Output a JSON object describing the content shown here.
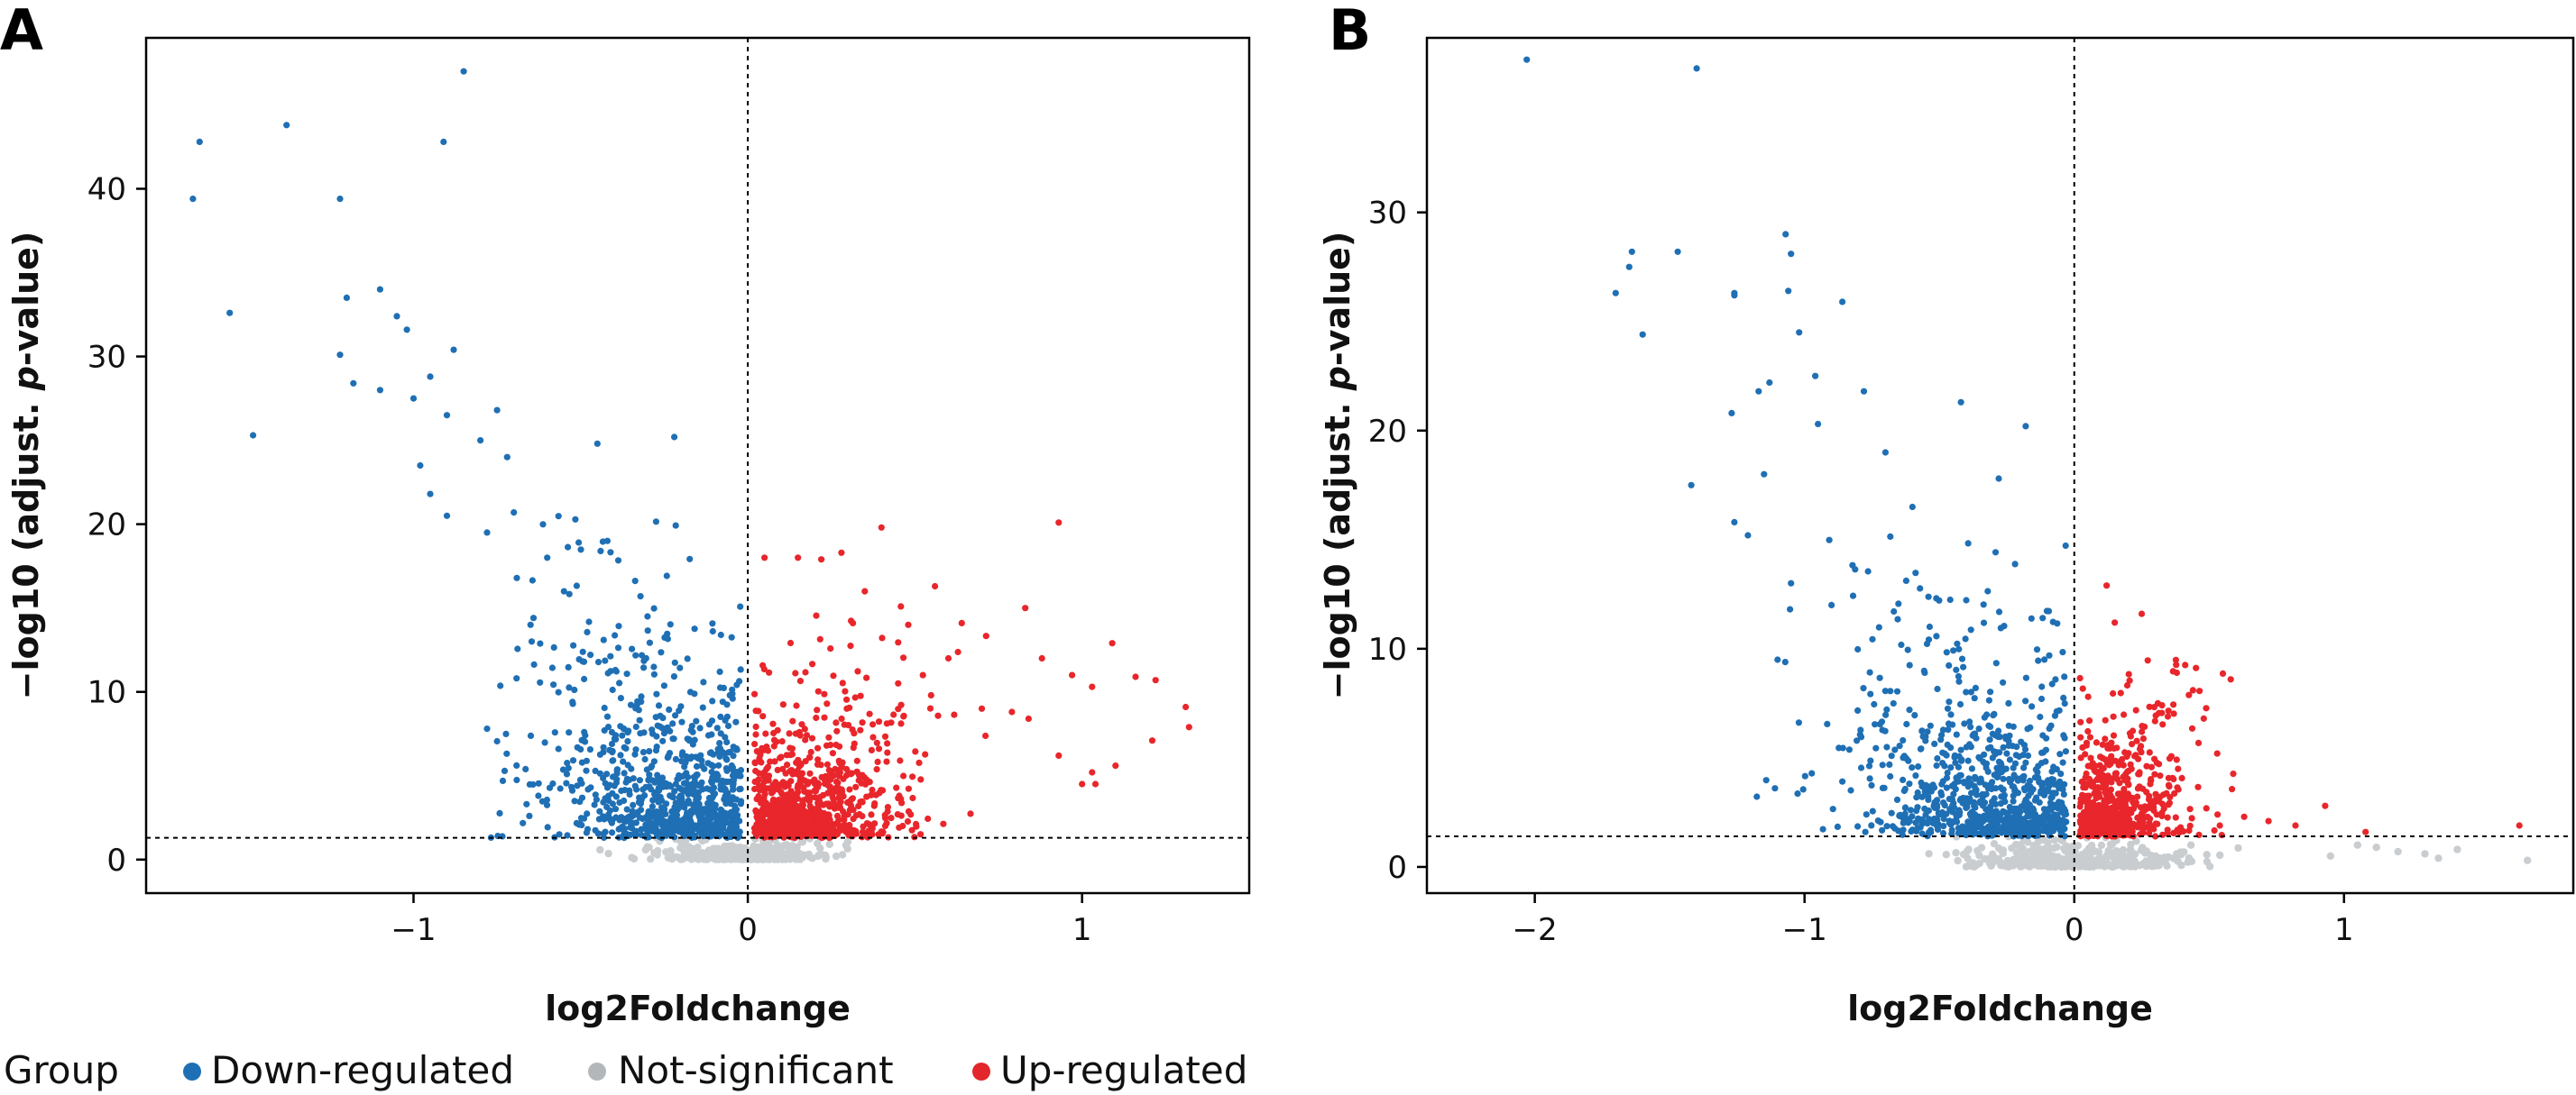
{
  "chart_data": [
    {
      "panel": "A",
      "type": "scatter",
      "xlabel": "log2Foldchange",
      "ylabel_parts": [
        "−log10 (adjust. ",
        "p",
        "-value)"
      ],
      "xlim": [
        -1.8,
        1.5
      ],
      "ylim": [
        -2,
        49
      ],
      "xticks": [
        -1,
        0,
        1
      ],
      "xtick_labels": [
        "−1",
        "0",
        "1"
      ],
      "yticks": [
        0,
        10,
        20,
        30,
        40
      ],
      "ytick_labels": [
        "0",
        "10",
        "20",
        "30",
        "40"
      ],
      "vline_x": 0,
      "hline_y": 1.3,
      "series": [
        {
          "name": "Down-regulated",
          "seed": 11,
          "points": [
            [
              -0.85,
              47
            ],
            [
              -1.38,
              43.8
            ],
            [
              -1.64,
              42.8
            ],
            [
              -0.91,
              42.8
            ],
            [
              -1.66,
              39.4
            ],
            [
              -1.22,
              39.4
            ],
            [
              -1.1,
              34
            ],
            [
              -1.2,
              33.5
            ],
            [
              -1.55,
              32.6
            ],
            [
              -1.05,
              32.4
            ],
            [
              -1.02,
              31.6
            ],
            [
              -0.88,
              30.4
            ],
            [
              -1.22,
              30.1
            ],
            [
              -0.95,
              28.8
            ],
            [
              -1.18,
              28.4
            ],
            [
              -1.1,
              28
            ],
            [
              -1.0,
              27.5
            ],
            [
              -0.75,
              26.8
            ],
            [
              -0.9,
              26.5
            ],
            [
              -1.48,
              25.3
            ],
            [
              -0.22,
              25.2
            ],
            [
              -0.8,
              25
            ],
            [
              -0.72,
              24
            ],
            [
              -0.45,
              24.8
            ],
            [
              -0.98,
              23.5
            ],
            [
              -0.78,
              19.5
            ],
            [
              -0.95,
              21.8
            ],
            [
              -0.9,
              20.5
            ],
            [
              -0.7,
              20.7
            ],
            [
              -0.78,
              7.8
            ],
            [
              -0.6,
              18
            ],
            [
              -0.55,
              16
            ],
            [
              -0.42,
              19
            ],
            [
              -0.3,
              14.5
            ],
            [
              -0.65,
              14
            ]
          ],
          "cluster": {
            "count": 900,
            "x_range": [
              -0.78,
              -0.02
            ],
            "y_range": [
              1.3,
              21
            ],
            "x_center": -0.12,
            "x_spread": 0.26,
            "y_scale": 4.2
          }
        },
        {
          "name": "Not-significant",
          "seed": 23,
          "cluster": {
            "count": 380,
            "x_range": [
              -0.5,
              0.3
            ],
            "y_range": [
              0,
              1.3
            ],
            "x_center": 0,
            "x_spread": 0.14,
            "y_scale": 0.5
          }
        },
        {
          "name": "Up-regulated",
          "seed": 37,
          "points": [
            [
              0.93,
              20.1
            ],
            [
              0.4,
              19.8
            ],
            [
              0.05,
              18
            ],
            [
              0.15,
              18
            ],
            [
              0.22,
              17.9
            ],
            [
              0.28,
              18.3
            ],
            [
              0.56,
              16.3
            ],
            [
              0.83,
              15
            ],
            [
              0.64,
              14.1
            ],
            [
              1.09,
              12.9
            ],
            [
              0.88,
              12
            ],
            [
              0.97,
              11
            ],
            [
              1.03,
              10.3
            ],
            [
              1.16,
              10.9
            ],
            [
              1.22,
              10.7
            ],
            [
              0.79,
              8.8
            ],
            [
              0.84,
              8.4
            ],
            [
              1.31,
              9.1
            ],
            [
              1.21,
              7.1
            ],
            [
              1.32,
              7.9
            ],
            [
              0.93,
              6.2
            ],
            [
              1.03,
              5.2
            ],
            [
              1.1,
              5.6
            ],
            [
              1.0,
              4.5
            ],
            [
              1.04,
              4.5
            ],
            [
              0.7,
              9
            ],
            [
              0.6,
              12
            ],
            [
              0.48,
              14
            ],
            [
              0.35,
              16
            ]
          ],
          "cluster": {
            "count": 850,
            "x_range": [
              0.02,
              0.72
            ],
            "y_range": [
              1.3,
              16.5
            ],
            "x_center": 0.1,
            "x_spread": 0.2,
            "y_scale": 3.2
          }
        }
      ]
    },
    {
      "panel": "B",
      "type": "scatter",
      "xlabel": "log2Foldchange",
      "ylabel_parts": [
        "−log10 (adjust. ",
        "p",
        "-value)"
      ],
      "xlim": [
        -2.4,
        1.85
      ],
      "ylim": [
        -1.2,
        38
      ],
      "xticks": [
        -2,
        -1,
        0,
        1
      ],
      "xtick_labels": [
        "−2",
        "−1",
        "0",
        "1"
      ],
      "yticks": [
        0,
        10,
        20,
        30
      ],
      "ytick_labels": [
        "0",
        "10",
        "20",
        "30"
      ],
      "vline_x": 0,
      "hline_y": 1.4,
      "series": [
        {
          "name": "Down-regulated",
          "seed": 53,
          "points": [
            [
              -2.03,
              37
            ],
            [
              -1.4,
              36.6
            ],
            [
              -1.07,
              29
            ],
            [
              -1.64,
              28.2
            ],
            [
              -1.65,
              27.5
            ],
            [
              -1.47,
              28.2
            ],
            [
              -1.05,
              28.1
            ],
            [
              -1.7,
              26.3
            ],
            [
              -1.26,
              26.3
            ],
            [
              -1.26,
              26.2
            ],
            [
              -1.06,
              26.4
            ],
            [
              -0.86,
              25.9
            ],
            [
              -1.6,
              24.4
            ],
            [
              -1.02,
              24.5
            ],
            [
              -1.13,
              22.2
            ],
            [
              -1.17,
              21.8
            ],
            [
              -0.96,
              22.5
            ],
            [
              -0.78,
              21.8
            ],
            [
              -1.27,
              20.8
            ],
            [
              -1.42,
              17.5
            ],
            [
              -1.26,
              15.8
            ],
            [
              -1.21,
              15.2
            ],
            [
              -1.1,
              9.5
            ],
            [
              -0.42,
              21.3
            ],
            [
              -0.18,
              20.2
            ],
            [
              -0.28,
              17.8
            ],
            [
              -0.95,
              20.3
            ],
            [
              -0.7,
              19
            ],
            [
              -1.15,
              18
            ],
            [
              -1.05,
              13
            ],
            [
              -0.9,
              12
            ],
            [
              -0.6,
              16.5
            ]
          ],
          "cluster": {
            "count": 850,
            "x_range": [
              -1.2,
              -0.03
            ],
            "y_range": [
              1.4,
              16
            ],
            "x_center": -0.18,
            "x_spread": 0.36,
            "y_scale": 3.3
          }
        },
        {
          "name": "Not-significant",
          "seed": 71,
          "points": [
            [
              1.68,
              0.3
            ],
            [
              1.42,
              0.8
            ],
            [
              1.3,
              0.6
            ],
            [
              1.2,
              0.7
            ],
            [
              1.12,
              0.9
            ],
            [
              0.95,
              0.5
            ],
            [
              1.05,
              1.0
            ],
            [
              1.35,
              0.4
            ]
          ],
          "cluster": {
            "count": 420,
            "x_range": [
              -0.55,
              0.85
            ],
            "y_range": [
              0,
              1.4
            ],
            "x_center": 0,
            "x_spread": 0.22,
            "y_scale": 0.5
          }
        },
        {
          "name": "Up-regulated",
          "seed": 89,
          "points": [
            [
              1.65,
              1.9
            ],
            [
              1.08,
              1.6
            ],
            [
              0.93,
              2.8
            ],
            [
              0.82,
              1.9
            ],
            [
              0.72,
              2.1
            ],
            [
              0.63,
              2.3
            ],
            [
              0.58,
              8.6
            ],
            [
              0.38,
              8.9
            ],
            [
              0.44,
              8.1
            ],
            [
              0.31,
              7.5
            ],
            [
              0.12,
              12.9
            ],
            [
              0.25,
              11.6
            ],
            [
              0.15,
              11.2
            ],
            [
              0.48,
              6.8
            ],
            [
              0.53,
              5.2
            ]
          ],
          "cluster": {
            "count": 620,
            "x_range": [
              0.02,
              0.62
            ],
            "y_range": [
              1.4,
              9.5
            ],
            "x_center": 0.08,
            "x_spread": 0.17,
            "y_scale": 2.2
          }
        }
      ]
    }
  ],
  "legend": {
    "title": "Group",
    "items": [
      {
        "label": "Down-regulated",
        "color": "#1f6fb4"
      },
      {
        "label": "Not-significant",
        "color": "#b4b7b9"
      },
      {
        "label": "Up-regulated",
        "color": "#e2262b"
      }
    ]
  },
  "colors": {
    "Down-regulated": "#1f6fb4",
    "Not-significant": "#c9cdd0",
    "Up-regulated": "#e8262b"
  }
}
